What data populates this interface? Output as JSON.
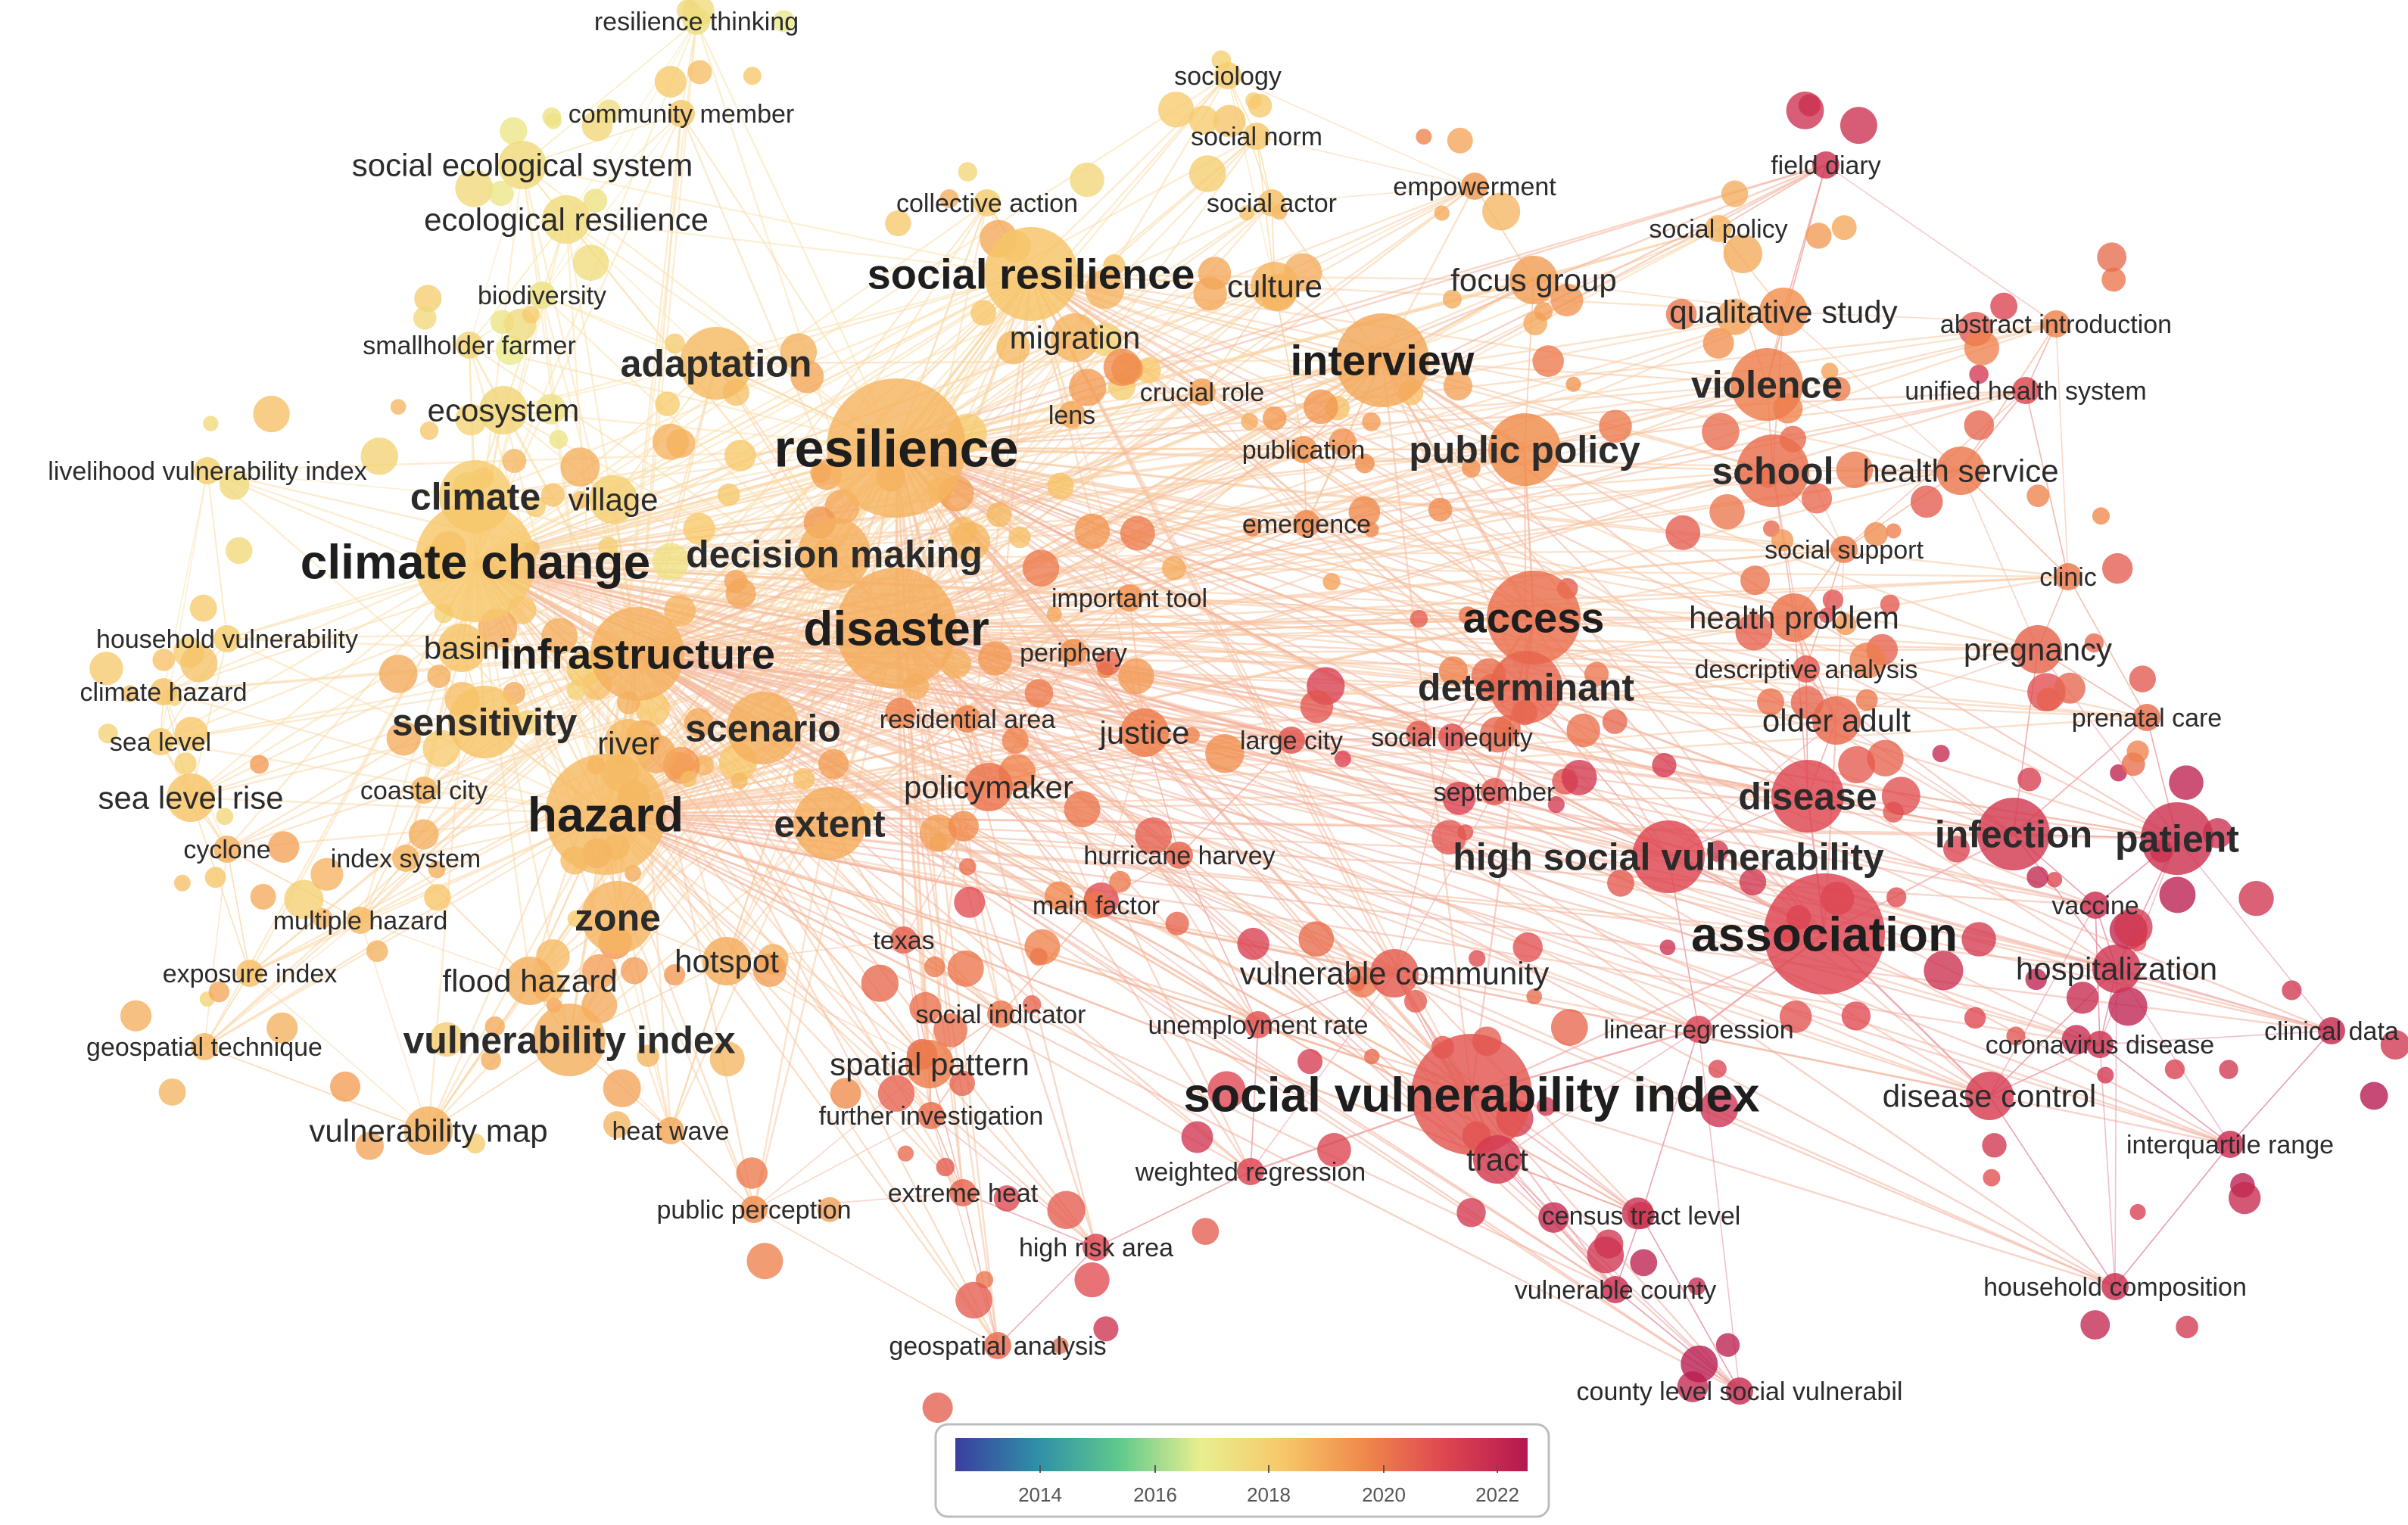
{
  "legend": {
    "ticks": [
      "2014",
      "2016",
      "2018",
      "2020",
      "2022"
    ],
    "gradient": [
      "#3b3e9e",
      "#2f8fa8",
      "#5fc98c",
      "#e8ef8f",
      "#f7c86a",
      "#f0894a",
      "#de4550",
      "#b5174f"
    ]
  },
  "terms": [
    {
      "label": "resilience thinking",
      "year": 2017.7,
      "weight": 1
    },
    {
      "label": "community member",
      "year": 2018.5,
      "weight": 1
    },
    {
      "label": "social ecological system",
      "year": 2017.9,
      "weight": 2
    },
    {
      "label": "ecological resilience",
      "year": 2017.8,
      "weight": 2
    },
    {
      "label": "biodiversity",
      "year": 2017.6,
      "weight": 1
    },
    {
      "label": "smallholder farmer",
      "year": 2018.1,
      "weight": 1
    },
    {
      "label": "ecosystem",
      "year": 2018.0,
      "weight": 2
    },
    {
      "label": "livelihood vulnerability index",
      "year": 2018.2,
      "weight": 1
    },
    {
      "label": "climate",
      "year": 2018.4,
      "weight": 3
    },
    {
      "label": "village",
      "year": 2018.2,
      "weight": 2
    },
    {
      "label": "climate change",
      "year": 2018.5,
      "weight": 5
    },
    {
      "label": "household vulnerability",
      "year": 2018.3,
      "weight": 1
    },
    {
      "label": "climate hazard",
      "year": 2018.6,
      "weight": 1
    },
    {
      "label": "sea level",
      "year": 2018.4,
      "weight": 1
    },
    {
      "label": "sea level rise",
      "year": 2018.6,
      "weight": 2
    },
    {
      "label": "cyclone",
      "year": 2019.0,
      "weight": 1
    },
    {
      "label": "multiple hazard",
      "year": 2018.8,
      "weight": 1
    },
    {
      "label": "exposure index",
      "year": 2018.7,
      "weight": 1
    },
    {
      "label": "geospatial technique",
      "year": 2018.9,
      "weight": 1
    },
    {
      "label": "basin",
      "year": 2018.6,
      "weight": 2
    },
    {
      "label": "infrastructure",
      "year": 2019.0,
      "weight": 4
    },
    {
      "label": "sensitivity",
      "year": 2018.6,
      "weight": 3
    },
    {
      "label": "river",
      "year": 2018.8,
      "weight": 2
    },
    {
      "label": "coastal city",
      "year": 2018.9,
      "weight": 1
    },
    {
      "label": "hazard",
      "year": 2018.8,
      "weight": 5
    },
    {
      "label": "index system",
      "year": 2018.9,
      "weight": 1
    },
    {
      "label": "zone",
      "year": 2018.9,
      "weight": 3
    },
    {
      "label": "flood hazard",
      "year": 2019.0,
      "weight": 2
    },
    {
      "label": "hotspot",
      "year": 2019.1,
      "weight": 2
    },
    {
      "label": "vulnerability index",
      "year": 2019.0,
      "weight": 3
    },
    {
      "label": "vulnerability map",
      "year": 2019.0,
      "weight": 2
    },
    {
      "label": "heat wave",
      "year": 2019.2,
      "weight": 1
    },
    {
      "label": "adaptation",
      "year": 2018.8,
      "weight": 3
    },
    {
      "label": "resilience",
      "year": 2018.9,
      "weight": 6
    },
    {
      "label": "decision making",
      "year": 2019.0,
      "weight": 3
    },
    {
      "label": "disaster",
      "year": 2019.1,
      "weight": 5
    },
    {
      "label": "scenario",
      "year": 2019.0,
      "weight": 3
    },
    {
      "label": "extent",
      "year": 2019.1,
      "weight": 3
    },
    {
      "label": "social resilience",
      "year": 2018.6,
      "weight": 4
    },
    {
      "label": "collective action",
      "year": 2018.4,
      "weight": 1
    },
    {
      "label": "migration",
      "year": 2018.9,
      "weight": 2
    },
    {
      "label": "lens",
      "year": 2019.2,
      "weight": 1
    },
    {
      "label": "sociology",
      "year": 2018.3,
      "weight": 1
    },
    {
      "label": "social norm",
      "year": 2018.5,
      "weight": 1
    },
    {
      "label": "social actor",
      "year": 2018.7,
      "weight": 1
    },
    {
      "label": "culture",
      "year": 2018.9,
      "weight": 2
    },
    {
      "label": "crucial role",
      "year": 2019.3,
      "weight": 1
    },
    {
      "label": "interview",
      "year": 2019.2,
      "weight": 4
    },
    {
      "label": "empowerment",
      "year": 2019.5,
      "weight": 1
    },
    {
      "label": "focus group",
      "year": 2019.4,
      "weight": 2
    },
    {
      "label": "publication",
      "year": 2019.6,
      "weight": 1
    },
    {
      "label": "public policy",
      "year": 2019.8,
      "weight": 3
    },
    {
      "label": "emergence",
      "year": 2019.9,
      "weight": 1
    },
    {
      "label": "important tool",
      "year": 2019.7,
      "weight": 1
    },
    {
      "label": "periphery",
      "year": 2019.8,
      "weight": 1
    },
    {
      "label": "residential area",
      "year": 2020.0,
      "weight": 1
    },
    {
      "label": "justice",
      "year": 2020.1,
      "weight": 2
    },
    {
      "label": "policymaker",
      "year": 2020.3,
      "weight": 2
    },
    {
      "label": "hurricane harvey",
      "year": 2020.6,
      "weight": 1
    },
    {
      "label": "main factor",
      "year": 2020.2,
      "weight": 1
    },
    {
      "label": "texas",
      "year": 2020.7,
      "weight": 1
    },
    {
      "label": "social indicator",
      "year": 2020.2,
      "weight": 1
    },
    {
      "label": "spatial pattern",
      "year": 2020.1,
      "weight": 2
    },
    {
      "label": "further investigation",
      "year": 2020.4,
      "weight": 1
    },
    {
      "label": "public perception",
      "year": 2019.8,
      "weight": 1
    },
    {
      "label": "extreme heat",
      "year": 2020.6,
      "weight": 1
    },
    {
      "label": "high risk area",
      "year": 2021.2,
      "weight": 1
    },
    {
      "label": "geospatial analysis",
      "year": 2020.5,
      "weight": 1
    },
    {
      "label": "weighted regression",
      "year": 2021.3,
      "weight": 1
    },
    {
      "label": "unemployment rate",
      "year": 2021.0,
      "weight": 1
    },
    {
      "label": "vulnerable community",
      "year": 2020.8,
      "weight": 2
    },
    {
      "label": "large city",
      "year": 2020.9,
      "weight": 1
    },
    {
      "label": "social inequity",
      "year": 2021.0,
      "weight": 1
    },
    {
      "label": "september",
      "year": 2020.9,
      "weight": 1
    },
    {
      "label": "access",
      "year": 2020.4,
      "weight": 4
    },
    {
      "label": "determinant",
      "year": 2020.6,
      "weight": 3
    },
    {
      "label": "high social vulnerability",
      "year": 2021.2,
      "weight": 3
    },
    {
      "label": "social vulnerability index",
      "year": 2020.9,
      "weight": 5
    },
    {
      "label": "tract",
      "year": 2021.6,
      "weight": 2
    },
    {
      "label": "census tract level",
      "year": 2021.7,
      "weight": 1
    },
    {
      "label": "vulnerable county",
      "year": 2021.9,
      "weight": 1
    },
    {
      "label": "county level social vulnerabil",
      "year": 2022.0,
      "weight": 1
    },
    {
      "label": "linear regression",
      "year": 2021.4,
      "weight": 1
    },
    {
      "label": "association",
      "year": 2021.3,
      "weight": 5
    },
    {
      "label": "disease",
      "year": 2021.2,
      "weight": 3
    },
    {
      "label": "infection",
      "year": 2021.6,
      "weight": 3
    },
    {
      "label": "patient",
      "year": 2021.8,
      "weight": 3
    },
    {
      "label": "vaccine",
      "year": 2021.9,
      "weight": 1
    },
    {
      "label": "hospitalization",
      "year": 2021.7,
      "weight": 2
    },
    {
      "label": "coronavirus disease",
      "year": 2021.8,
      "weight": 1
    },
    {
      "label": "disease control",
      "year": 2021.5,
      "weight": 2
    },
    {
      "label": "clinical data",
      "year": 2022.1,
      "weight": 1
    },
    {
      "label": "interquartile range",
      "year": 2022.0,
      "weight": 1
    },
    {
      "label": "household composition",
      "year": 2021.9,
      "weight": 1
    },
    {
      "label": "older adult",
      "year": 2020.5,
      "weight": 2
    },
    {
      "label": "prenatal care",
      "year": 2020.4,
      "weight": 1
    },
    {
      "label": "pregnancy",
      "year": 2020.6,
      "weight": 2
    },
    {
      "label": "descriptive analysis",
      "year": 2020.8,
      "weight": 1
    },
    {
      "label": "health problem",
      "year": 2020.3,
      "weight": 2
    },
    {
      "label": "clinic",
      "year": 2020.2,
      "weight": 1
    },
    {
      "label": "social support",
      "year": 2020.1,
      "weight": 1
    },
    {
      "label": "school",
      "year": 2020.4,
      "weight": 3
    },
    {
      "label": "health service",
      "year": 2020.2,
      "weight": 2
    },
    {
      "label": "violence",
      "year": 2020.1,
      "weight": 3
    },
    {
      "label": "unified health system",
      "year": 2021.2,
      "weight": 1
    },
    {
      "label": "qualitative study",
      "year": 2019.7,
      "weight": 2
    },
    {
      "label": "abstract introduction",
      "year": 2020.0,
      "weight": 1
    },
    {
      "label": "social policy",
      "year": 2018.9,
      "weight": 1
    },
    {
      "label": "field diary",
      "year": 2021.8,
      "weight": 1
    }
  ]
}
